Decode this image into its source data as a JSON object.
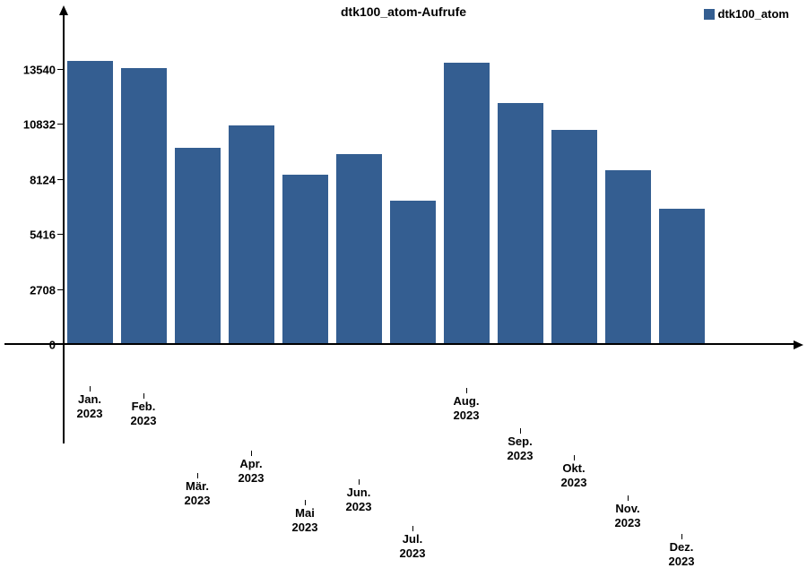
{
  "chart": {
    "type": "bar",
    "title": "dtk100_atom-Aufrufe",
    "series_name": "dtk100_atom",
    "bar_color": "#345e91",
    "background": "#ffffff",
    "axis_color": "#000000",
    "title_fontsize": 14,
    "label_fontsize": 13,
    "y": {
      "min": 0,
      "max_label": 13540,
      "plot_max": 16000,
      "ticks": [
        0,
        2708,
        5416,
        8124,
        10832,
        13540
      ]
    },
    "categories": [
      {
        "line1": "Jan.",
        "line2": "2023"
      },
      {
        "line1": "Feb.",
        "line2": "2023"
      },
      {
        "line1": "Mär.",
        "line2": "2023"
      },
      {
        "line1": "Apr.",
        "line2": "2023"
      },
      {
        "line1": "Mai",
        "line2": "2023"
      },
      {
        "line1": "Jun.",
        "line2": "2023"
      },
      {
        "line1": "Jul.",
        "line2": "2023"
      },
      {
        "line1": "Aug.",
        "line2": "2023"
      },
      {
        "line1": "Sep.",
        "line2": "2023"
      },
      {
        "line1": "Okt.",
        "line2": "2023"
      },
      {
        "line1": "Nov.",
        "line2": "2023"
      },
      {
        "line1": "Dez.",
        "line2": "2023"
      }
    ],
    "values": [
      13900,
      13540,
      9600,
      10700,
      8300,
      9300,
      7000,
      13800,
      11800,
      10500,
      8500,
      6600
    ]
  }
}
